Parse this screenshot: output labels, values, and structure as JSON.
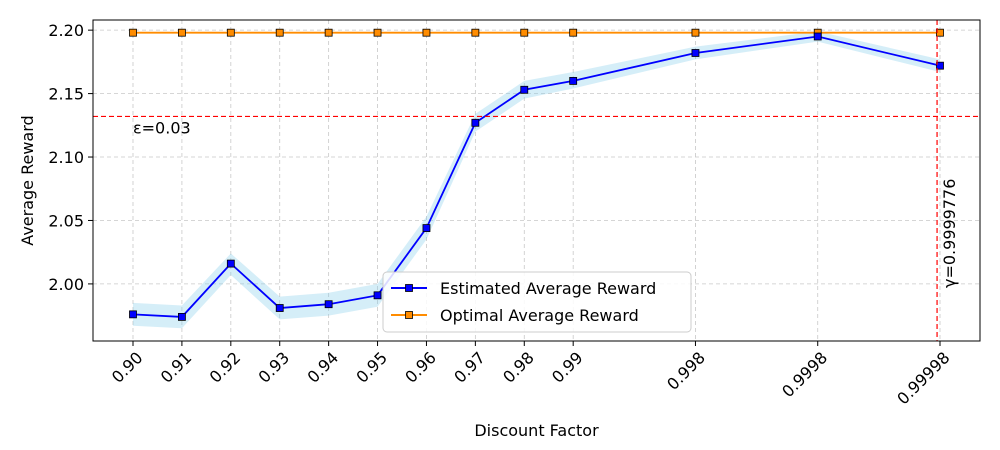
{
  "chart_data": {
    "type": "line",
    "xlabel": "Discount Factor",
    "ylabel": "Average Reward",
    "categories": [
      "0.90",
      "0.91",
      "0.92",
      "0.93",
      "0.94",
      "0.95",
      "0.96",
      "0.97",
      "0.98",
      "0.99",
      "0.998",
      "0.9998",
      "0.99998"
    ],
    "ylim": [
      1.955,
      2.208
    ],
    "yticks": [
      "2.00",
      "2.05",
      "2.10",
      "2.15",
      "2.20"
    ],
    "grid": true,
    "legend_position": "bottom-center",
    "series": [
      {
        "name": "Estimated Average Reward",
        "color": "#0000ff",
        "band_color": "#87ceeb",
        "marker": "square",
        "values": [
          1.976,
          1.974,
          2.016,
          1.981,
          1.984,
          1.991,
          2.044,
          2.127,
          2.153,
          2.16,
          2.182,
          2.195,
          2.172
        ],
        "lower": [
          1.967,
          1.965,
          2.007,
          1.972,
          1.975,
          1.982,
          2.035,
          2.12,
          2.146,
          2.154,
          2.177,
          2.191,
          2.167
        ],
        "upper": [
          1.985,
          1.983,
          2.024,
          1.99,
          1.993,
          2.0,
          2.053,
          2.134,
          2.16,
          2.167,
          2.187,
          2.199,
          2.177
        ]
      },
      {
        "name": "Optimal Average Reward",
        "color": "#ff8c00",
        "marker": "square",
        "values": [
          2.198,
          2.198,
          2.198,
          2.198,
          2.198,
          2.198,
          2.198,
          2.198,
          2.198,
          2.198,
          2.198,
          2.198,
          2.198
        ]
      }
    ],
    "hline": {
      "y": 2.132,
      "label": "ε=0.03",
      "color": "#ff0000"
    },
    "vline": {
      "at_category_index": 12,
      "offset_fraction": -0.12,
      "label": "γ=0.9999776",
      "color": "#ff0000"
    }
  }
}
